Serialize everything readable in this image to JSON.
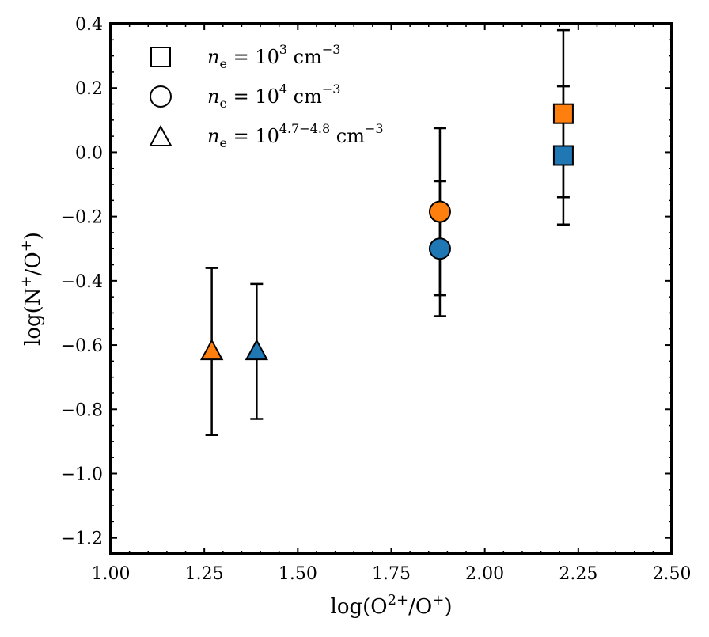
{
  "chart_data": {
    "type": "scatter",
    "title": "",
    "xlabel": "log(O2+/O+)",
    "xlabel_parts": {
      "pre": "log(O",
      "sup1": "2+",
      "mid": "/O",
      "sup2": "+",
      "post": ")"
    },
    "ylabel": "log(N+/O+)",
    "ylabel_parts": {
      "pre": "log(N",
      "sup1": "+",
      "mid": "/O",
      "sup2": "+",
      "post": ")"
    },
    "xlim": [
      1.0,
      2.5
    ],
    "ylim": [
      -1.25,
      0.4
    ],
    "xticks": [
      1.0,
      1.25,
      1.5,
      1.75,
      2.0,
      2.25,
      2.5
    ],
    "xtick_labels": [
      "1.00",
      "1.25",
      "1.50",
      "1.75",
      "2.00",
      "2.25",
      "2.50"
    ],
    "yticks": [
      0.4,
      0.2,
      0.0,
      -0.2,
      -0.4,
      -0.6,
      -0.8,
      -1.0,
      -1.2
    ],
    "ytick_labels": [
      "0.4",
      "0.2",
      "0.0",
      "−0.2",
      "−0.4",
      "−0.6",
      "−0.8",
      "−1.0",
      "−1.2"
    ],
    "grid": false,
    "legend_position": "top-left",
    "colors": {
      "orange": "#ff7f0e",
      "blue": "#1f77b4",
      "edge": "#000000"
    },
    "legend": [
      {
        "marker": "square",
        "prefix": "n",
        "sub": "e",
        "eq": " = 10",
        "exp": "3",
        "unit": " cm",
        "unit_exp": "−3"
      },
      {
        "marker": "circle",
        "prefix": "n",
        "sub": "e",
        "eq": " = 10",
        "exp": "4",
        "unit": " cm",
        "unit_exp": "−3"
      },
      {
        "marker": "triangle",
        "prefix": "n",
        "sub": "e",
        "eq": " = 10",
        "exp": "4.7−4.8",
        "unit": " cm",
        "unit_exp": "−3"
      }
    ],
    "points": [
      {
        "name": "square-orange",
        "marker": "square",
        "color": "orange",
        "x": 2.21,
        "y": 0.12,
        "yerr_low": 0.26,
        "yerr_high": 0.26
      },
      {
        "name": "square-blue",
        "marker": "square",
        "color": "blue",
        "x": 2.21,
        "y": -0.01,
        "yerr_low": 0.215,
        "yerr_high": 0.215
      },
      {
        "name": "circle-orange",
        "marker": "circle",
        "color": "orange",
        "x": 1.88,
        "y": -0.185,
        "yerr_low": 0.26,
        "yerr_high": 0.26
      },
      {
        "name": "circle-blue",
        "marker": "circle",
        "color": "blue",
        "x": 1.88,
        "y": -0.3,
        "yerr_low": 0.21,
        "yerr_high": 0.21
      },
      {
        "name": "triangle-orange",
        "marker": "triangle",
        "color": "orange",
        "x": 1.27,
        "y": -0.62,
        "yerr_low": 0.26,
        "yerr_high": 0.26
      },
      {
        "name": "triangle-blue",
        "marker": "triangle",
        "color": "blue",
        "x": 1.39,
        "y": -0.62,
        "yerr_low": 0.21,
        "yerr_high": 0.21
      }
    ]
  }
}
